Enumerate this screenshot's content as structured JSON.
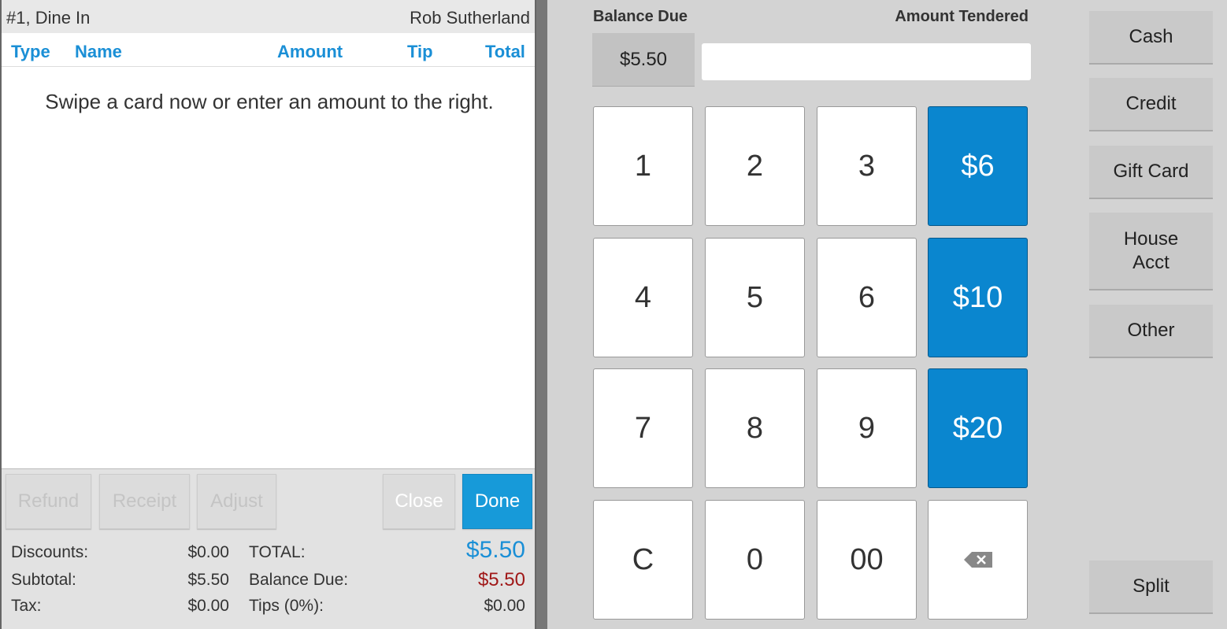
{
  "order": {
    "title": "#1, Dine In",
    "server": "Rob Sutherland"
  },
  "columns": [
    "Type",
    "Name",
    "Amount",
    "Tip",
    "Total"
  ],
  "message": "Swipe a card now or enter an amount to the right.",
  "actions": {
    "refund": "Refund",
    "receipt": "Receipt",
    "adjust": "Adjust",
    "close": "Close",
    "done": "Done"
  },
  "summary": {
    "discounts_label": "Discounts:",
    "discounts": "$0.00",
    "subtotal_label": "Subtotal:",
    "subtotal": "$5.50",
    "tax_label": "Tax:",
    "tax": "$0.00",
    "total_label": "TOTAL:",
    "total": "$5.50",
    "balance_label": "Balance Due:",
    "balance": "$5.50",
    "tips_label": "Tips (0%):",
    "tips": "$0.00"
  },
  "tender": {
    "balance_due_label": "Balance Due",
    "balance_due": "$5.50",
    "amount_tendered_label": "Amount Tendered",
    "amount_tendered": ""
  },
  "keypad": [
    "1",
    "2",
    "3",
    "$6",
    "4",
    "5",
    "6",
    "$10",
    "7",
    "8",
    "9",
    "$20",
    "C",
    "0",
    "00",
    "backspace-icon"
  ],
  "payment_types": {
    "cash": "Cash",
    "credit": "Credit",
    "gift": "Gift Card",
    "house": "House Acct",
    "other": "Other",
    "split": "Split"
  },
  "colors": {
    "accent": "#0a86cf",
    "header_blue": "#1a8fd6",
    "balance_red": "#a01818"
  }
}
